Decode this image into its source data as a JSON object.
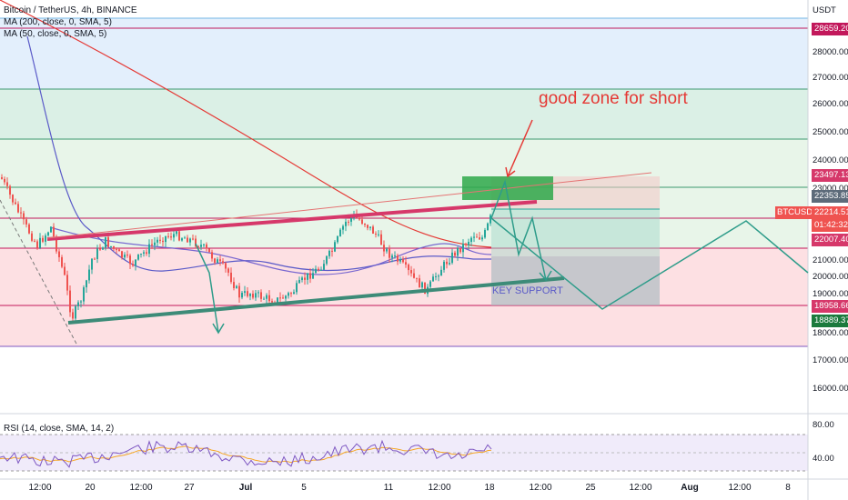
{
  "symbol_legend": "Bitcoin / TetherUS, 4h, BINANCE",
  "ma200_legend": "MA (200, close, 0, SMA, 5)",
  "ma50_legend": "MA (50, close, 0, SMA, 5)",
  "rsi_legend": "RSI (14, close, SMA, 14, 2)",
  "currency": "USDT",
  "price_axis": [
    "28000.00",
    "27000.00",
    "26000.00",
    "25000.00",
    "24000.00",
    "23000.00",
    "21000.00",
    "20000.00",
    "19000.00",
    "18000.00",
    "17000.00",
    "16000.00"
  ],
  "rsi_axis": [
    "80.00",
    "40.00"
  ],
  "price_tags": {
    "level_28659": "28659.20",
    "level_23497": "23497.13",
    "level_22353": "22353.85",
    "symbol": "BTCUSDT",
    "last_price": "22214.51",
    "countdown": "01:42:32",
    "level_22007": "22007.40",
    "level_18958": "18958.66",
    "level_18889": "18889.37"
  },
  "time_axis": [
    "12:00",
    "20",
    "12:00",
    "27",
    "Jul",
    "5",
    "11",
    "12:00",
    "18",
    "12:00",
    "25",
    "12:00",
    "Aug",
    "12:00",
    "8"
  ],
  "annotations": {
    "short_zone": "good zone for short",
    "key_support": "KEY SUPPORT"
  },
  "colors": {
    "up": "#26a69a",
    "down": "#ef5350",
    "ma200": "#e53935",
    "ma50": "#5a5ac8",
    "resistance": "#d6386a",
    "support": "#3d8b78",
    "projection": "#2e9c8a"
  }
}
